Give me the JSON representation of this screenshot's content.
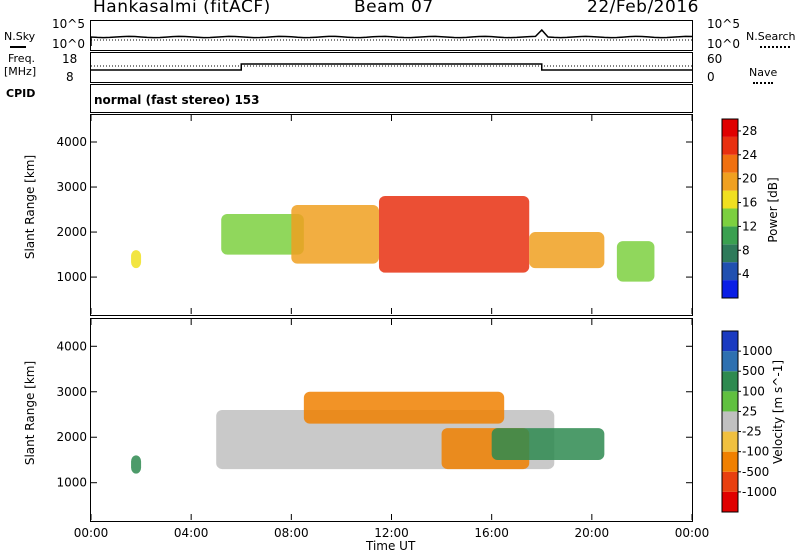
{
  "header": {
    "station": "Hankasalmi (fitACF)",
    "beam": "Beam 07",
    "date": "22/Feb/2016"
  },
  "nsky_panel": {
    "left_label": "N.Sky",
    "right_label": "N.Search",
    "left_ticks": [
      "10^5",
      "10^0"
    ],
    "right_ticks": [
      "10^5",
      "10^0"
    ]
  },
  "freq_panel": {
    "left_label_1": "Freq.",
    "left_label_2": "[MHz]",
    "right_label": "Nave",
    "left_ticks": [
      "18",
      "8"
    ],
    "right_ticks": [
      "60",
      "0"
    ]
  },
  "cpid_panel": {
    "left_label": "CPID",
    "text": "normal (fast stereo) 153"
  },
  "x_axis": {
    "title": "Time UT",
    "ticks": [
      "00:00",
      "04:00",
      "08:00",
      "12:00",
      "16:00",
      "20:00",
      "00:00"
    ]
  },
  "chart_data": [
    {
      "type": "heatmap",
      "title": "",
      "xlabel": "",
      "ylabel": "Slant Range [km]",
      "x_range": [
        "00:00",
        "24:00"
      ],
      "ylim": [
        180,
        4600
      ],
      "yticks": [
        1000,
        2000,
        3000,
        4000
      ],
      "colorbar": {
        "label": "Power [dB]",
        "ticks": [
          4,
          8,
          12,
          16,
          20,
          24,
          28
        ],
        "range": [
          0,
          30
        ],
        "colors": [
          "#0a1ee6",
          "#2050b0",
          "#2e7a5a",
          "#3aa050",
          "#7cd040",
          "#f0e020",
          "#f0a020",
          "#f07010",
          "#e83010",
          "#e00000"
        ]
      },
      "echo_regions": [
        {
          "t_start_h": 1.6,
          "t_end_h": 2.0,
          "range_low_km": 1200,
          "range_high_km": 1600,
          "power_db": 16
        },
        {
          "t_start_h": 5.2,
          "t_end_h": 8.5,
          "range_low_km": 1500,
          "range_high_km": 2400,
          "power_db": 14
        },
        {
          "t_start_h": 8.0,
          "t_end_h": 11.5,
          "range_low_km": 1300,
          "range_high_km": 2600,
          "power_db": 18
        },
        {
          "t_start_h": 11.5,
          "t_end_h": 17.5,
          "range_low_km": 1100,
          "range_high_km": 2800,
          "power_db": 24
        },
        {
          "t_start_h": 17.5,
          "t_end_h": 20.5,
          "range_low_km": 1200,
          "range_high_km": 2000,
          "power_db": 20
        },
        {
          "t_start_h": 21.0,
          "t_end_h": 22.5,
          "range_low_km": 900,
          "range_high_km": 1800,
          "power_db": 12
        }
      ]
    },
    {
      "type": "heatmap",
      "title": "",
      "xlabel": "Time UT",
      "ylabel": "Slant Range [km]",
      "x_range": [
        "00:00",
        "24:00"
      ],
      "ylim": [
        180,
        4600
      ],
      "yticks": [
        1000,
        2000,
        3000,
        4000
      ],
      "colorbar": {
        "label": "Velocity [m s^-1]",
        "ticks": [
          1000,
          500,
          100,
          25,
          -25,
          -100,
          -500,
          -1000
        ],
        "colors": [
          "#1a3ac0",
          "#2e70b0",
          "#2e8a50",
          "#60c040",
          "#c0c0c0",
          "#f0c040",
          "#f08000",
          "#e84010",
          "#e00000"
        ]
      },
      "echo_regions": [
        {
          "t_start_h": 1.6,
          "t_end_h": 2.0,
          "range_low_km": 1200,
          "range_high_km": 1600,
          "velocity": 100
        },
        {
          "t_start_h": 5.0,
          "t_end_h": 18.5,
          "range_low_km": 1300,
          "range_high_km": 2600,
          "velocity": 0
        },
        {
          "t_start_h": 8.5,
          "t_end_h": 16.5,
          "range_low_km": 2300,
          "range_high_km": 3000,
          "velocity": -300
        },
        {
          "t_start_h": 14.0,
          "t_end_h": 17.5,
          "range_low_km": 1300,
          "range_high_km": 2200,
          "velocity": -500
        },
        {
          "t_start_h": 16.0,
          "t_end_h": 20.5,
          "range_low_km": 1500,
          "range_high_km": 2200,
          "velocity": 100
        }
      ]
    }
  ]
}
